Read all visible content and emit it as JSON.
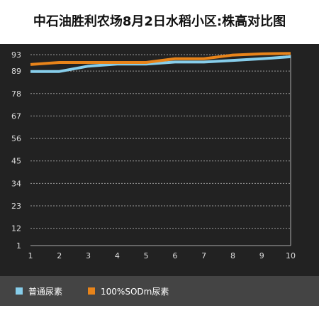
{
  "colors": {
    "background": "#222222",
    "grid": "#9a9a9a",
    "axis": "#aaaaaa",
    "legend_bg": "#444444"
  },
  "chart_data": {
    "type": "line",
    "title": "中石油胜利农场8月2日水稻小区:株高对比图",
    "xlabel": "",
    "ylabel": "",
    "x": [
      1,
      2,
      3,
      4,
      5,
      6,
      7,
      8,
      9,
      10
    ],
    "y_ticks": [
      1,
      12,
      23,
      34,
      45,
      56,
      67,
      78,
      89,
      93
    ],
    "ylim": [
      1,
      93
    ],
    "grid": true,
    "legend_position": "bottom-left",
    "series": [
      {
        "name": "普通尿素",
        "color": "#87ceeb",
        "values": [
          88.8,
          88.8,
          90.2,
          90.7,
          90.7,
          91.2,
          91.2,
          91.6,
          92.0,
          92.5
        ]
      },
      {
        "name": "100%SODm尿素",
        "color": "#e8841a",
        "values": [
          90.6,
          91.1,
          91.1,
          91.1,
          91.1,
          92.0,
          92.0,
          92.9,
          93.2,
          93.3
        ]
      }
    ]
  }
}
